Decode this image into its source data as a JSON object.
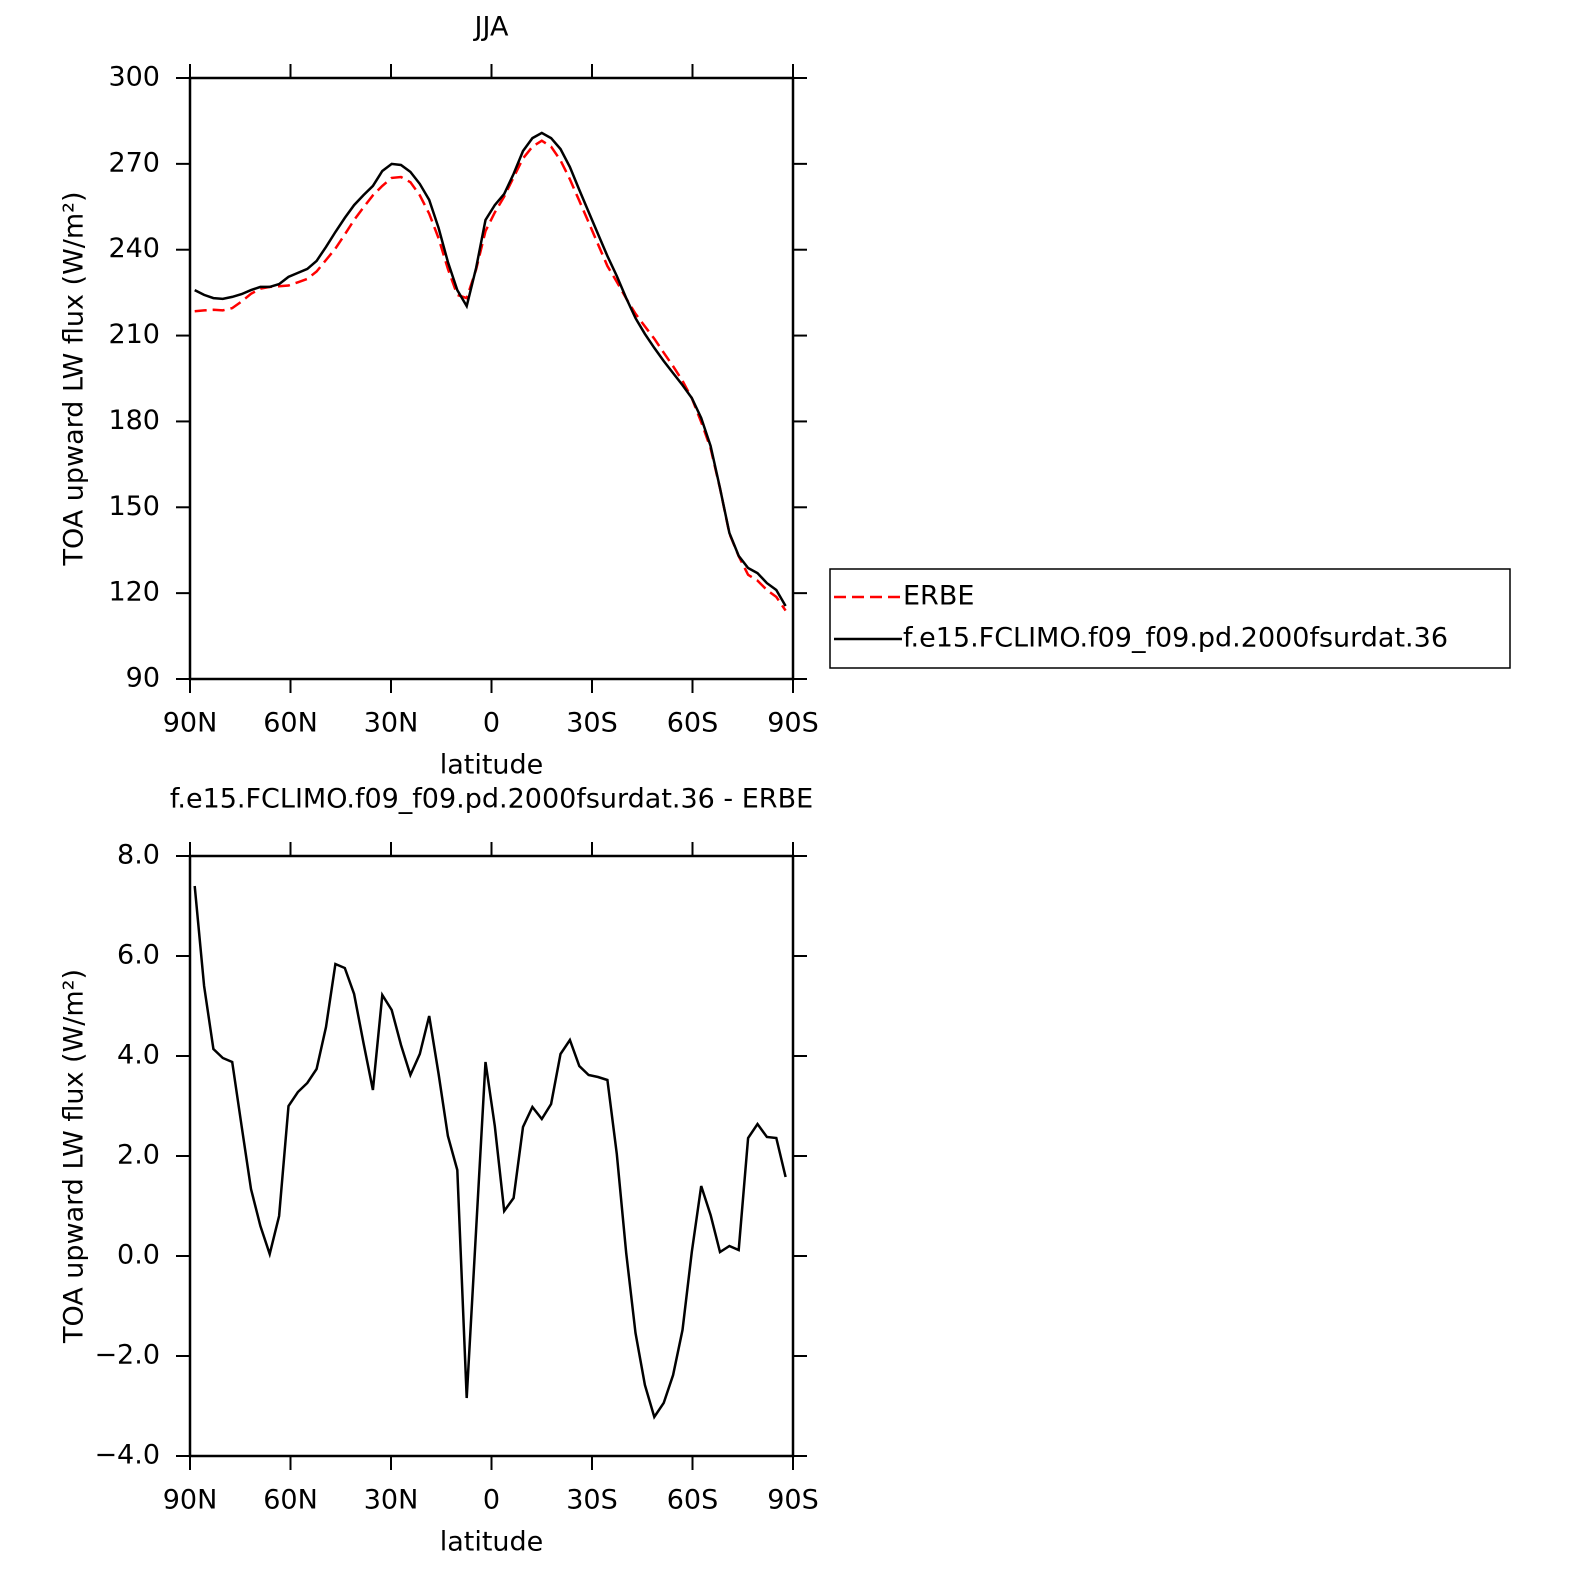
{
  "chart_data": [
    {
      "type": "line",
      "title": "JJA",
      "x_label": "latitude",
      "y_label": "TOA upward LW flux (W/m²)",
      "xlim": [
        90,
        -90
      ],
      "xticks": [
        {
          "value": 90,
          "label": "90N"
        },
        {
          "value": 60,
          "label": "60N"
        },
        {
          "value": 30,
          "label": "30N"
        },
        0,
        {
          "value": -30,
          "label": "30S"
        },
        {
          "value": -60,
          "label": "60S"
        },
        {
          "value": -90,
          "label": "90S"
        }
      ],
      "ylim": [
        90,
        300
      ],
      "yticks": [
        90,
        120,
        150,
        180,
        210,
        240,
        270,
        300
      ],
      "legend": "right",
      "x": [
        88.6,
        85.8,
        83.0,
        80.2,
        77.4,
        74.6,
        71.8,
        69.0,
        66.2,
        63.4,
        60.6,
        57.8,
        55.0,
        52.2,
        49.4,
        46.6,
        43.8,
        41.0,
        38.2,
        35.4,
        32.6,
        29.8,
        27.0,
        24.2,
        21.4,
        18.6,
        15.8,
        13.0,
        10.2,
        7.4,
        4.6,
        1.8,
        -1.0,
        -3.8,
        -6.6,
        -9.4,
        -12.2,
        -15.0,
        -17.8,
        -20.6,
        -23.4,
        -26.2,
        -29.0,
        -31.8,
        -34.6,
        -37.4,
        -40.2,
        -43.0,
        -45.8,
        -48.6,
        -51.4,
        -54.2,
        -57.0,
        -59.8,
        -62.6,
        -65.4,
        -68.2,
        -71.0,
        -73.8,
        -76.6,
        -79.4,
        -82.2,
        -85.0,
        -87.8
      ],
      "series": [
        {
          "name": "ERBE",
          "color": "#ff0000",
          "dashed": true,
          "values": [
            218.5,
            218.8,
            219.0,
            218.8,
            219.6,
            221.9,
            224.6,
            226.4,
            227.0,
            227.2,
            227.5,
            228.6,
            229.8,
            232.4,
            236.4,
            240.4,
            245.3,
            250.4,
            254.8,
            259.0,
            262.3,
            265.1,
            265.4,
            263.6,
            259.0,
            252.6,
            244.0,
            233.3,
            224.2,
            223.1,
            233.1,
            246.5,
            253.0,
            258.6,
            265.3,
            271.9,
            276.0,
            278.1,
            276.0,
            271.2,
            264.6,
            257.1,
            249.6,
            241.9,
            234.3,
            228.8,
            223.0,
            217.6,
            213.2,
            208.9,
            204.0,
            199.3,
            194.2,
            188.1,
            179.8,
            170.6,
            156.6,
            140.8,
            132.9,
            126.4,
            124.4,
            121.1,
            118.7,
            113.9
          ]
        },
        {
          "name": "f.e15.FCLIMO.f09_f09.pd.2000fsurdat.36",
          "color": "#000000",
          "dashed": false,
          "values": [
            225.9,
            224.2,
            223.1,
            222.8,
            223.5,
            224.5,
            225.9,
            227.0,
            227.0,
            228.0,
            230.5,
            231.9,
            233.3,
            236.1,
            241.0,
            246.2,
            251.1,
            255.6,
            259.1,
            262.3,
            267.5,
            270.0,
            269.6,
            267.2,
            263.0,
            257.4,
            247.6,
            235.7,
            225.9,
            220.3,
            233.6,
            250.4,
            255.6,
            259.5,
            266.5,
            274.5,
            279.0,
            280.8,
            279.0,
            275.2,
            268.9,
            260.9,
            253.2,
            245.5,
            237.8,
            230.8,
            223.1,
            216.1,
            210.6,
            205.7,
            201.1,
            196.9,
            192.7,
            188.2,
            181.2,
            171.4,
            156.7,
            141.0,
            133.0,
            128.8,
            127.0,
            123.5,
            121.1,
            115.5
          ]
        }
      ]
    },
    {
      "type": "line",
      "title": "f.e15.FCLIMO.f09_f09.pd.2000fsurdat.36 - ERBE",
      "x_label": "latitude",
      "y_label": "TOA upward LW flux (W/m²)",
      "xlim": [
        90,
        -90
      ],
      "xticks": [
        {
          "value": 90,
          "label": "90N"
        },
        {
          "value": 60,
          "label": "60N"
        },
        {
          "value": 30,
          "label": "30N"
        },
        0,
        {
          "value": -30,
          "label": "30S"
        },
        {
          "value": -60,
          "label": "60S"
        },
        {
          "value": -90,
          "label": "90S"
        }
      ],
      "ylim": [
        -4,
        8
      ],
      "yticks": [
        {
          "value": -4,
          "label": "−4.0"
        },
        {
          "value": -2,
          "label": "−2.0"
        },
        {
          "value": 0,
          "label": "0.0"
        },
        {
          "value": 2,
          "label": "2.0"
        },
        {
          "value": 4,
          "label": "4.0"
        },
        {
          "value": 6,
          "label": "6.0"
        },
        {
          "value": 8,
          "label": "8.0"
        }
      ],
      "x": [
        88.6,
        85.8,
        83.0,
        80.2,
        77.4,
        74.6,
        71.8,
        69.0,
        66.2,
        63.4,
        60.6,
        57.8,
        55.0,
        52.2,
        49.4,
        46.6,
        43.8,
        41.0,
        38.2,
        35.4,
        32.6,
        29.8,
        27.0,
        24.2,
        21.4,
        18.6,
        15.8,
        13.0,
        10.2,
        7.4,
        4.6,
        1.8,
        -1.0,
        -3.8,
        -6.6,
        -9.4,
        -12.2,
        -15.0,
        -17.8,
        -20.6,
        -23.4,
        -26.2,
        -29.0,
        -31.8,
        -34.6,
        -37.4,
        -40.2,
        -43.0,
        -45.8,
        -48.6,
        -51.4,
        -54.2,
        -57.0,
        -59.8,
        -62.6,
        -65.4,
        -68.2,
        -71.0,
        -73.8,
        -76.6,
        -79.4,
        -82.2,
        -85.0,
        -87.8
      ],
      "series": [
        {
          "color": "#000000",
          "dashed": false,
          "values": [
            7.4,
            5.4,
            4.14,
            3.96,
            3.88,
            2.6,
            1.34,
            0.6,
            0.04,
            0.8,
            3.0,
            3.28,
            3.46,
            3.74,
            4.58,
            5.84,
            5.76,
            5.24,
            4.26,
            3.32,
            5.22,
            4.92,
            4.22,
            3.62,
            4.04,
            4.8,
            3.64,
            2.4,
            1.72,
            -2.84,
            0.52,
            3.88,
            2.6,
            0.9,
            1.16,
            2.58,
            2.98,
            2.74,
            3.04,
            4.04,
            4.32,
            3.8,
            3.62,
            3.58,
            3.52,
            2.04,
            0.06,
            -1.54,
            -2.58,
            -3.22,
            -2.94,
            -2.38,
            -1.48,
            0.08,
            1.4,
            0.82,
            0.08,
            0.2,
            0.12,
            2.36,
            2.64,
            2.38,
            2.36,
            1.58
          ]
        }
      ]
    }
  ]
}
